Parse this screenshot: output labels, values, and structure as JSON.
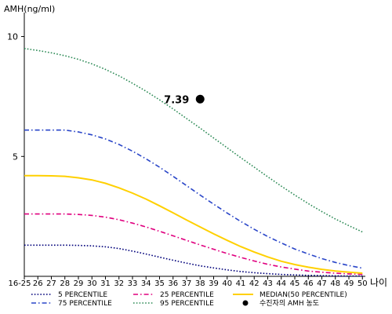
{
  "chart_data": {
    "type": "line",
    "ylabel": "AMH(ng/ml)",
    "xlabel": "나이",
    "x": [
      "16-25",
      "26",
      "27",
      "28",
      "29",
      "30",
      "31",
      "32",
      "33",
      "34",
      "35",
      "36",
      "37",
      "38",
      "39",
      "40",
      "41",
      "42",
      "43",
      "44",
      "45",
      "46",
      "47",
      "48",
      "49",
      "50"
    ],
    "ylim": [
      0,
      11
    ],
    "yticks": [
      "5",
      "10"
    ],
    "grid": false,
    "legend_position": "bottom",
    "series": [
      {
        "name": "5 PERCENTILE",
        "color": "#00007a",
        "style": "dotted",
        "values": [
          1.3,
          1.3,
          1.3,
          1.3,
          1.29,
          1.27,
          1.23,
          1.16,
          1.05,
          0.93,
          0.8,
          0.67,
          0.55,
          0.44,
          0.35,
          0.27,
          0.2,
          0.15,
          0.11,
          0.08,
          0.06,
          0.04,
          0.03,
          0.02,
          0.01,
          0.01
        ]
      },
      {
        "name": "25 PERCENTILE",
        "color": "#e0007f",
        "style": "dashdot",
        "values": [
          2.6,
          2.6,
          2.6,
          2.6,
          2.58,
          2.54,
          2.47,
          2.36,
          2.22,
          2.06,
          1.88,
          1.69,
          1.5,
          1.31,
          1.13,
          0.95,
          0.79,
          0.64,
          0.5,
          0.39,
          0.3,
          0.22,
          0.17,
          0.13,
          0.1,
          0.08
        ]
      },
      {
        "name": "MEDIAN(50 PERCENTILE)",
        "color": "#ffd000",
        "style": "solid",
        "values": [
          4.2,
          4.2,
          4.19,
          4.17,
          4.11,
          4.02,
          3.88,
          3.69,
          3.47,
          3.22,
          2.94,
          2.65,
          2.35,
          2.06,
          1.77,
          1.5,
          1.24,
          1.01,
          0.81,
          0.63,
          0.49,
          0.38,
          0.29,
          0.22,
          0.17,
          0.13
        ]
      },
      {
        "name": "75 PERCENTILE",
        "color": "#2a46c8",
        "style": "dashdot",
        "values": [
          6.1,
          6.1,
          6.1,
          6.1,
          6.02,
          5.9,
          5.73,
          5.5,
          5.22,
          4.9,
          4.55,
          4.17,
          3.78,
          3.39,
          3.01,
          2.64,
          2.29,
          1.96,
          1.66,
          1.39,
          1.14,
          0.93,
          0.74,
          0.58,
          0.45,
          0.34
        ]
      },
      {
        "name": "95 PERCENTILE",
        "color": "#2e8b57",
        "style": "dotted",
        "values": [
          9.5,
          9.42,
          9.32,
          9.2,
          9.05,
          8.86,
          8.63,
          8.36,
          8.05,
          7.72,
          7.36,
          6.98,
          6.58,
          6.18,
          5.77,
          5.36,
          4.95,
          4.55,
          4.15,
          3.76,
          3.39,
          3.03,
          2.7,
          2.39,
          2.11,
          1.85
        ]
      }
    ],
    "point": {
      "name": "수진자의 AMH 농도",
      "x": "38",
      "value": 7.39,
      "label": "7.39",
      "color": "#000000"
    }
  }
}
